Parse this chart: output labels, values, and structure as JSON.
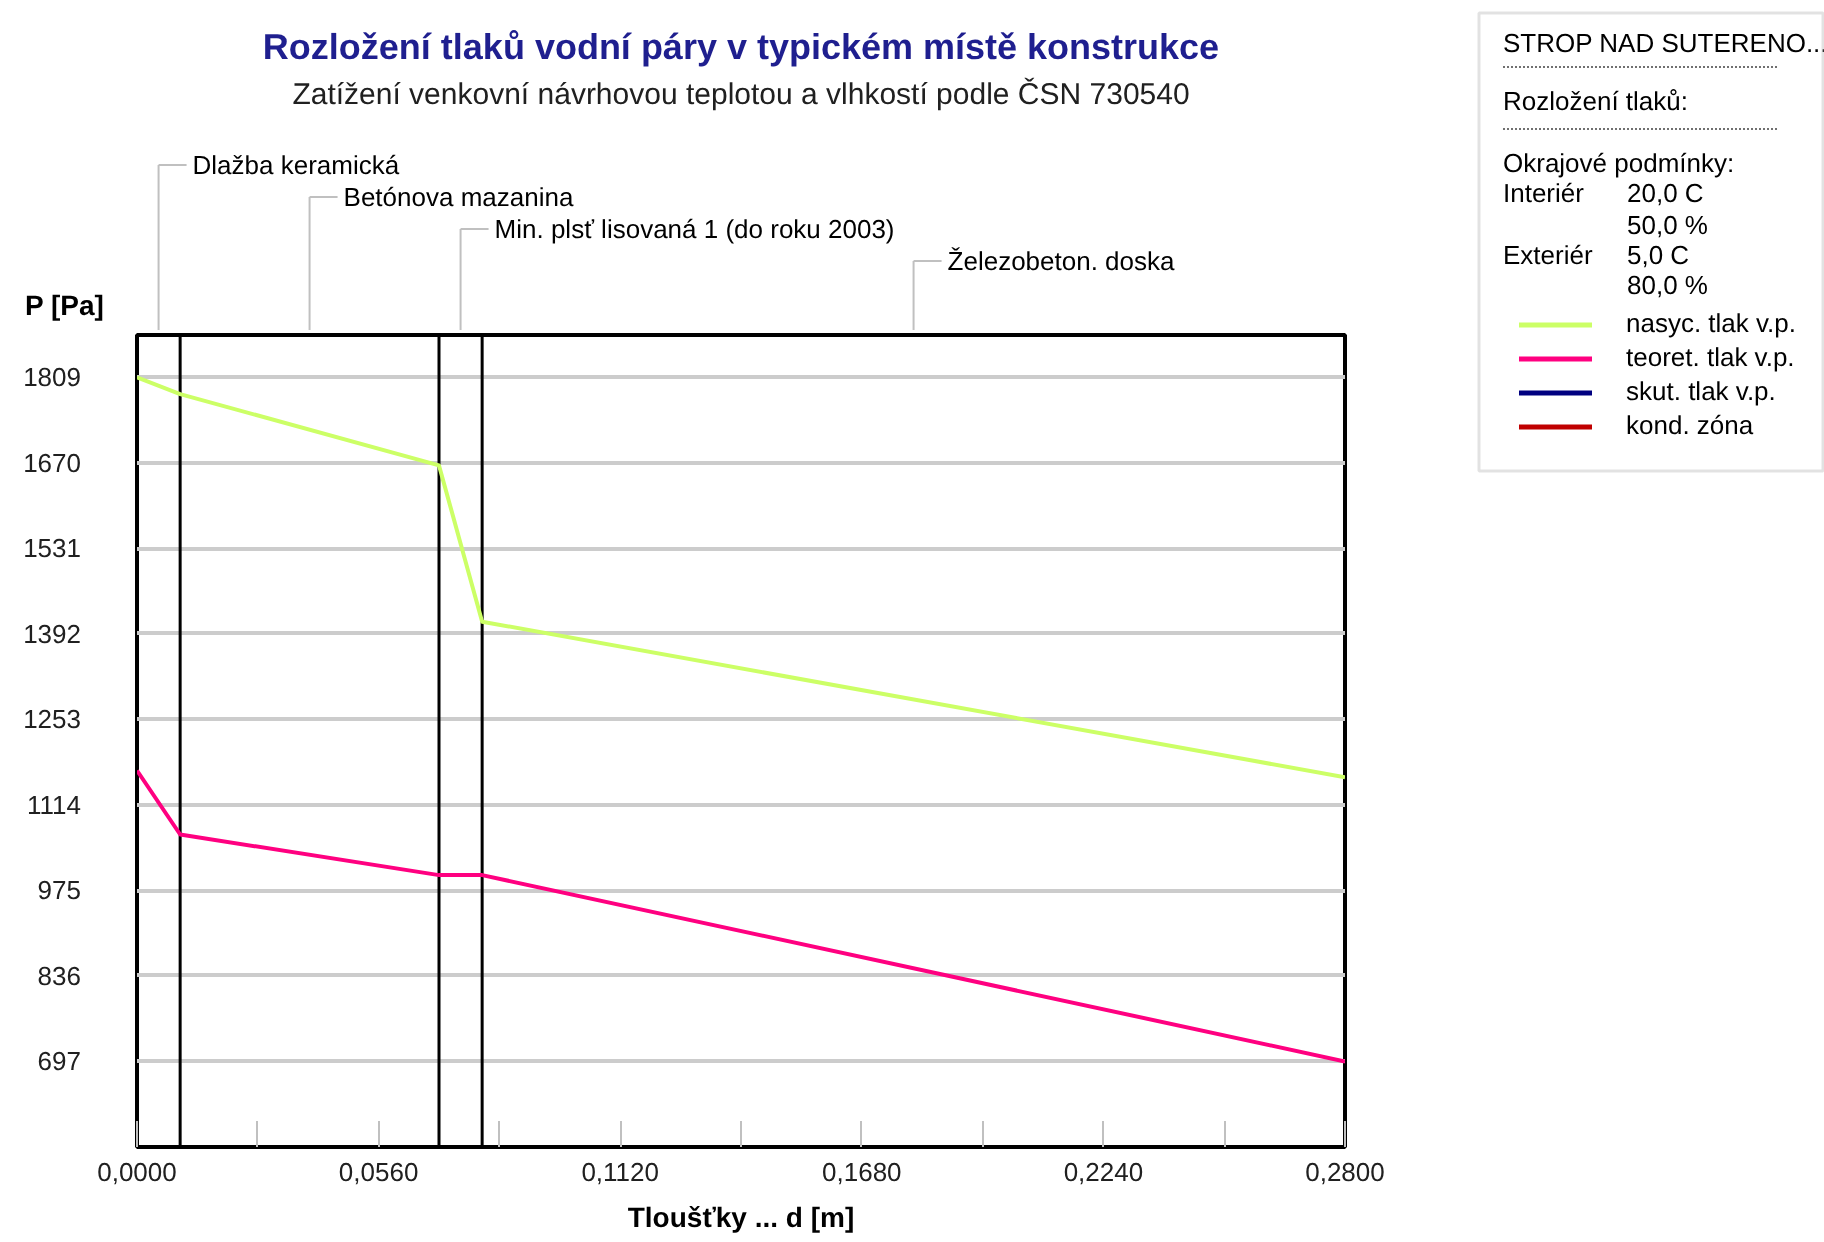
{
  "chart_data": {
    "type": "line",
    "title": "Rozložení tlaků vodní páry v typickém místě konstrukce",
    "subtitle": "Zatížení venkovní návrhovou teplotou a vlhkostí podle ČSN 730540",
    "xlabel": "Tloušťky ... d [m]",
    "ylabel": "P [Pa]",
    "x": [
      0,
      0.01,
      0.07,
      0.08,
      0.28
    ],
    "series": [
      {
        "name": "nasyc. tlak v.p.",
        "color": "#ccff66",
        "values": [
          1809,
          1782,
          1666,
          1412,
          1159
        ]
      },
      {
        "name": "teoret. tlak v.p.",
        "color": "#ff0080",
        "values": [
          1170,
          1066,
          1000,
          1000,
          697
        ]
      },
      {
        "name": "skut. tlak v.p.",
        "color": "#000080",
        "values": [
          null,
          null,
          null,
          null,
          null
        ]
      },
      {
        "name": "kond. zóna",
        "color": "#c00000",
        "values": [
          null,
          null,
          null,
          null,
          null
        ]
      }
    ],
    "xlim": [
      0,
      0.28
    ],
    "ylim": [
      558,
      1878
    ],
    "xticks": [
      {
        "value": 0,
        "label": "0,0000"
      },
      {
        "value": 0.028,
        "label": null
      },
      {
        "value": 0.056,
        "label": "0,0560"
      },
      {
        "value": 0.084,
        "label": null
      },
      {
        "value": 0.112,
        "label": "0,1120"
      },
      {
        "value": 0.14,
        "label": null
      },
      {
        "value": 0.168,
        "label": "0,1680"
      },
      {
        "value": 0.196,
        "label": null
      },
      {
        "value": 0.224,
        "label": "0,2240"
      },
      {
        "value": 0.252,
        "label": null
      },
      {
        "value": 0.28,
        "label": "0,2800"
      }
    ],
    "yticks": [
      697,
      836,
      975,
      1114,
      1253,
      1392,
      1531,
      1670,
      1809
    ],
    "grid": "y",
    "legend": "right",
    "ref_lines": [
      {
        "axis": "x",
        "value": 0.01,
        "color": "#000000"
      },
      {
        "axis": "x",
        "value": 0.07,
        "color": "#000000"
      },
      {
        "axis": "x",
        "value": 0.08,
        "color": "#000000"
      }
    ],
    "annotations": [
      "Dlažba keramická",
      "Betónova mazanina",
      "Min. plsť lisovaná 1 (do roku 2003)",
      "Železobeton. doska",
      "STROP NAD SUTERENO...",
      "Rozložení tlaků:",
      "Okrajové podmínky:",
      "Interiér",
      "20,0 C",
      "50,0 %",
      "Exteriér",
      "5,0 C",
      "80,0 %"
    ]
  }
}
